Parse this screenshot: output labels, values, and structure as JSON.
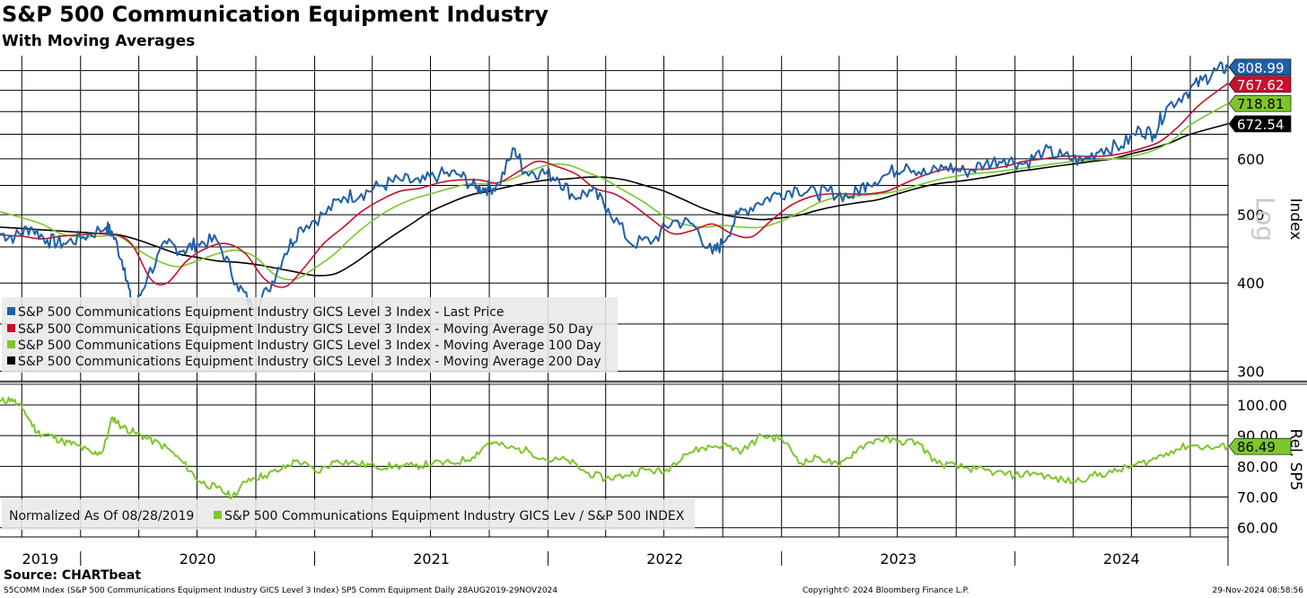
{
  "header": {
    "title": "S&P 500 Communication Equipment Industry",
    "subtitle": "With Moving Averages"
  },
  "footer": {
    "source": "Source: CHARTbeat",
    "description": "S5COMM Index (S&P 500 Communications Equipment Industry GICS Level 3 Index) SP5 Comm Equipment  Daily 28AUG2019-29NOV2024",
    "copyright": "Copyright© 2024 Bloomberg Finance L.P.",
    "timestamp": "29-Nov-2024 08:58:56"
  },
  "legend_top": [
    {
      "label": "S&P 500 Communications Equipment Industry GICS Level 3 Index - Last Price",
      "color": "#1f5fa6"
    },
    {
      "label": "S&P 500 Communications Equipment Industry GICS Level 3 Index - Moving Average 50 Day",
      "color": "#c8102e"
    },
    {
      "label": "S&P 500 Communications Equipment Industry GICS Level 3 Index - Moving Average 100 Day",
      "color": "#7dc62c"
    },
    {
      "label": "S&P 500 Communications Equipment Industry GICS Level 3 Index - Moving Average 200 Day",
      "color": "#000000"
    }
  ],
  "legend_bottom": {
    "note": "Normalized As Of 08/28/2019",
    "entry": "S&P 500 Communications Equipment Industry GICS Lev / S&P 500 INDEX",
    "color": "#7dc62c"
  },
  "chart_data": [
    {
      "type": "line",
      "yscale": "log",
      "ylabel": "Index",
      "scale_label": "Log",
      "ylim": [
        290,
        840
      ],
      "xlim": [
        "2019-08-28",
        "2024-11-29"
      ],
      "yticks": [
        300,
        400,
        500,
        600
      ],
      "yticks_dense": [
        300,
        350,
        400,
        450,
        500,
        550,
        600,
        650,
        700,
        750,
        800,
        850
      ],
      "xticks": [
        "2019",
        "2020",
        "2021",
        "2022",
        "2023",
        "2024"
      ],
      "grid": true,
      "legend_position": "bottom-left",
      "series": [
        {
          "name": "S&P 500 Communications Equipment Industry GICS Level 3 Index - Last Price",
          "color": "#1f5fa6",
          "last_value": 808.99,
          "last_label": "808.99",
          "x": [
            "2019-08-28",
            "2019-09-20",
            "2019-10-15",
            "2019-11-10",
            "2019-12-05",
            "2020-01-05",
            "2020-02-10",
            "2020-02-20",
            "2020-03-10",
            "2020-03-23",
            "2020-04-15",
            "2020-05-15",
            "2020-06-10",
            "2020-07-01",
            "2020-08-01",
            "2020-09-01",
            "2020-09-25",
            "2020-10-20",
            "2020-11-15",
            "2020-12-10",
            "2021-01-15",
            "2021-02-15",
            "2021-03-15",
            "2021-04-15",
            "2021-05-15",
            "2021-06-15",
            "2021-07-15",
            "2021-08-15",
            "2021-09-10",
            "2021-09-25",
            "2021-10-15",
            "2021-11-10",
            "2021-11-25",
            "2021-12-20",
            "2022-01-15",
            "2022-02-10",
            "2022-03-10",
            "2022-04-05",
            "2022-05-10",
            "2022-06-15",
            "2022-07-15",
            "2022-08-15",
            "2022-09-15",
            "2022-09-30",
            "2022-10-25",
            "2022-11-25",
            "2022-12-25",
            "2023-01-25",
            "2023-02-25",
            "2023-03-15",
            "2023-04-20",
            "2023-05-15",
            "2023-06-15",
            "2023-07-15",
            "2023-08-15",
            "2023-09-15",
            "2023-10-15",
            "2023-11-15",
            "2023-12-15",
            "2024-01-15",
            "2024-02-15",
            "2024-03-15",
            "2024-04-15",
            "2024-05-15",
            "2024-06-15",
            "2024-07-15",
            "2024-08-05",
            "2024-08-25",
            "2024-09-25",
            "2024-10-20",
            "2024-11-10",
            "2024-11-29"
          ],
          "values": [
            470,
            465,
            480,
            460,
            455,
            465,
            480,
            470,
            420,
            360,
            410,
            455,
            445,
            455,
            460,
            400,
            370,
            390,
            440,
            480,
            500,
            530,
            535,
            550,
            560,
            555,
            570,
            570,
            545,
            545,
            550,
            620,
            575,
            575,
            565,
            530,
            540,
            510,
            455,
            460,
            490,
            485,
            440,
            455,
            500,
            520,
            535,
            545,
            535,
            540,
            530,
            555,
            570,
            590,
            570,
            585,
            575,
            590,
            600,
            590,
            615,
            605,
            595,
            620,
            625,
            660,
            650,
            710,
            745,
            775,
            800,
            809
          ]
        },
        {
          "name": "S&P 500 Communications Equipment Industry GICS Level 3 Index - Moving Average 50 Day",
          "color": "#c8102e",
          "last_value": 767.62,
          "last_label": "767.62",
          "x": [
            "2019-08-28",
            "2019-10-01",
            "2019-11-01",
            "2019-12-01",
            "2020-01-01",
            "2020-02-15",
            "2020-03-20",
            "2020-04-20",
            "2020-05-15",
            "2020-06-15",
            "2020-07-15",
            "2020-08-15",
            "2020-09-15",
            "2020-10-15",
            "2020-11-15",
            "2020-12-15",
            "2021-01-15",
            "2021-02-15",
            "2021-03-15",
            "2021-04-15",
            "2021-05-15",
            "2021-06-15",
            "2021-07-15",
            "2021-08-15",
            "2021-09-15",
            "2021-10-15",
            "2021-11-15",
            "2021-12-15",
            "2022-01-15",
            "2022-02-15",
            "2022-03-15",
            "2022-04-15",
            "2022-05-15",
            "2022-06-15",
            "2022-07-15",
            "2022-08-15",
            "2022-09-15",
            "2022-10-15",
            "2022-11-15",
            "2022-12-15",
            "2023-01-15",
            "2023-02-15",
            "2023-03-15",
            "2023-04-15",
            "2023-05-15",
            "2023-06-15",
            "2023-07-15",
            "2023-08-15",
            "2023-09-15",
            "2023-10-15",
            "2023-11-15",
            "2023-12-15",
            "2024-01-15",
            "2024-02-15",
            "2024-03-15",
            "2024-04-15",
            "2024-05-15",
            "2024-06-15",
            "2024-07-15",
            "2024-08-15",
            "2024-09-15",
            "2024-10-15",
            "2024-11-29"
          ],
          "values": [
            468,
            466,
            462,
            466,
            468,
            470,
            455,
            405,
            400,
            430,
            448,
            455,
            440,
            405,
            395,
            420,
            455,
            480,
            505,
            525,
            540,
            545,
            555,
            560,
            560,
            555,
            575,
            595,
            585,
            570,
            545,
            535,
            515,
            490,
            470,
            475,
            485,
            470,
            465,
            490,
            515,
            530,
            535,
            535,
            535,
            540,
            555,
            570,
            580,
            580,
            580,
            585,
            595,
            600,
            605,
            605,
            605,
            610,
            620,
            635,
            670,
            715,
            768
          ]
        },
        {
          "name": "S&P 500 Communications Equipment Industry GICS Level 3 Index - Moving Average 100 Day",
          "color": "#7dc62c",
          "last_value": 718.81,
          "last_label": "718.81",
          "x": [
            "2019-08-28",
            "2019-10-01",
            "2019-11-01",
            "2019-12-01",
            "2020-01-01",
            "2020-02-01",
            "2020-03-01",
            "2020-04-01",
            "2020-05-01",
            "2020-06-01",
            "2020-07-01",
            "2020-08-01",
            "2020-09-01",
            "2020-10-01",
            "2020-11-01",
            "2020-12-01",
            "2021-01-01",
            "2021-02-01",
            "2021-03-01",
            "2021-04-01",
            "2021-05-01",
            "2021-06-01",
            "2021-07-01",
            "2021-08-01",
            "2021-09-01",
            "2021-10-01",
            "2021-11-01",
            "2021-12-01",
            "2022-01-01",
            "2022-02-01",
            "2022-03-01",
            "2022-04-01",
            "2022-05-01",
            "2022-06-01",
            "2022-07-01",
            "2022-08-01",
            "2022-09-01",
            "2022-10-01",
            "2022-11-01",
            "2022-12-01",
            "2023-01-01",
            "2023-02-01",
            "2023-03-01",
            "2023-04-01",
            "2023-05-01",
            "2023-06-01",
            "2023-07-01",
            "2023-08-01",
            "2023-09-01",
            "2023-10-01",
            "2023-11-01",
            "2023-12-01",
            "2024-01-01",
            "2024-02-01",
            "2024-03-01",
            "2024-04-01",
            "2024-05-01",
            "2024-06-01",
            "2024-07-01",
            "2024-08-01",
            "2024-09-01",
            "2024-10-01",
            "2024-11-29"
          ],
          "values": [
            505,
            495,
            485,
            470,
            465,
            466,
            466,
            445,
            430,
            422,
            430,
            440,
            445,
            435,
            410,
            405,
            420,
            440,
            465,
            490,
            510,
            525,
            535,
            545,
            553,
            553,
            560,
            575,
            588,
            588,
            575,
            560,
            540,
            520,
            498,
            485,
            480,
            483,
            480,
            480,
            490,
            505,
            520,
            530,
            532,
            535,
            540,
            550,
            560,
            567,
            572,
            575,
            580,
            585,
            590,
            595,
            598,
            600,
            605,
            615,
            635,
            670,
            719
          ]
        },
        {
          "name": "S&P 500 Communications Equipment Industry GICS Level 3 Index - Moving Average 200 Day",
          "color": "#000000",
          "last_value": 672.54,
          "last_label": "672.54",
          "x": [
            "2019-08-28",
            "2019-10-01",
            "2019-11-01",
            "2019-12-01",
            "2020-01-01",
            "2020-02-01",
            "2020-03-01",
            "2020-04-01",
            "2020-05-01",
            "2020-06-01",
            "2020-07-01",
            "2020-08-01",
            "2020-09-01",
            "2020-10-01",
            "2020-11-01",
            "2020-12-01",
            "2021-01-01",
            "2021-02-01",
            "2021-03-01",
            "2021-04-01",
            "2021-05-01",
            "2021-06-01",
            "2021-07-01",
            "2021-08-01",
            "2021-09-01",
            "2021-10-01",
            "2021-11-01",
            "2021-12-01",
            "2022-01-01",
            "2022-02-01",
            "2022-03-01",
            "2022-04-01",
            "2022-05-01",
            "2022-06-01",
            "2022-07-01",
            "2022-08-01",
            "2022-09-01",
            "2022-10-01",
            "2022-11-01",
            "2022-12-01",
            "2023-01-01",
            "2023-02-01",
            "2023-03-01",
            "2023-04-01",
            "2023-05-01",
            "2023-06-01",
            "2023-07-01",
            "2023-08-01",
            "2023-09-01",
            "2023-10-01",
            "2023-11-01",
            "2023-12-01",
            "2024-01-01",
            "2024-02-01",
            "2024-03-01",
            "2024-04-01",
            "2024-05-01",
            "2024-06-01",
            "2024-07-01",
            "2024-08-01",
            "2024-09-01",
            "2024-10-01",
            "2024-11-29"
          ],
          "values": [
            480,
            478,
            476,
            474,
            472,
            470,
            468,
            460,
            450,
            440,
            435,
            430,
            428,
            425,
            420,
            415,
            410,
            412,
            425,
            445,
            465,
            485,
            505,
            520,
            533,
            540,
            548,
            555,
            560,
            562,
            565,
            565,
            560,
            550,
            540,
            525,
            510,
            500,
            495,
            492,
            495,
            500,
            508,
            515,
            520,
            525,
            535,
            545,
            553,
            557,
            562,
            568,
            575,
            580,
            585,
            590,
            595,
            600,
            610,
            620,
            633,
            650,
            672.54
          ]
        }
      ]
    },
    {
      "type": "line",
      "ylabel": "Rel. SP5",
      "ylim": [
        57,
        107
      ],
      "yticks": [
        60,
        70,
        80,
        90,
        100
      ],
      "ytick_labels": [
        "60.00",
        "70.00",
        "80.00",
        "90.00",
        "100.00"
      ],
      "xticks": [
        "2019",
        "2020",
        "2021",
        "2022",
        "2023",
        "2024"
      ],
      "grid": true,
      "legend_position": "bottom-left",
      "series": [
        {
          "name": "S&P 500 Communications Equipment Industry GICS Lev / S&P 500 INDEX",
          "color": "#7dc62c",
          "last_value": 86.49,
          "last_label": "86.49",
          "x": [
            "2019-08-28",
            "2019-09-15",
            "2019-10-05",
            "2019-10-25",
            "2019-11-15",
            "2019-12-05",
            "2019-12-25",
            "2020-01-20",
            "2020-02-05",
            "2020-02-20",
            "2020-03-05",
            "2020-03-25",
            "2020-04-15",
            "2020-05-15",
            "2020-06-10",
            "2020-07-05",
            "2020-08-01",
            "2020-08-25",
            "2020-09-20",
            "2020-10-15",
            "2020-11-10",
            "2020-12-05",
            "2021-01-05",
            "2021-02-05",
            "2021-03-05",
            "2021-04-05",
            "2021-05-05",
            "2021-06-05",
            "2021-07-05",
            "2021-08-05",
            "2021-09-05",
            "2021-10-01",
            "2021-11-01",
            "2021-12-01",
            "2022-01-01",
            "2022-02-01",
            "2022-03-01",
            "2022-04-01",
            "2022-05-01",
            "2022-06-01",
            "2022-07-01",
            "2022-08-01",
            "2022-09-01",
            "2022-10-01",
            "2022-11-01",
            "2022-12-01",
            "2023-01-01",
            "2023-02-01",
            "2023-03-01",
            "2023-04-01",
            "2023-05-01",
            "2023-06-01",
            "2023-07-01",
            "2023-08-01",
            "2023-09-01",
            "2023-10-01",
            "2023-11-01",
            "2023-12-01",
            "2024-01-01",
            "2024-02-01",
            "2024-03-01",
            "2024-04-01",
            "2024-05-01",
            "2024-06-01",
            "2024-07-01",
            "2024-08-01",
            "2024-09-01",
            "2024-10-01",
            "2024-11-01",
            "2024-11-29"
          ],
          "values": [
            101,
            102,
            98,
            91,
            90,
            88,
            87,
            84,
            85,
            96,
            93,
            91,
            89,
            86,
            81,
            75,
            73,
            70,
            76,
            77,
            79,
            82,
            78,
            82,
            81,
            80,
            80,
            80,
            81,
            81,
            83,
            88,
            86,
            85,
            82,
            82,
            78,
            76,
            77,
            79,
            78,
            84,
            86,
            87,
            85,
            90,
            89,
            81,
            83,
            80,
            86,
            89,
            88,
            88,
            81,
            80,
            79,
            78,
            77,
            78,
            76,
            75,
            77,
            78,
            80,
            82,
            85,
            87,
            86,
            86.49
          ]
        }
      ]
    }
  ]
}
